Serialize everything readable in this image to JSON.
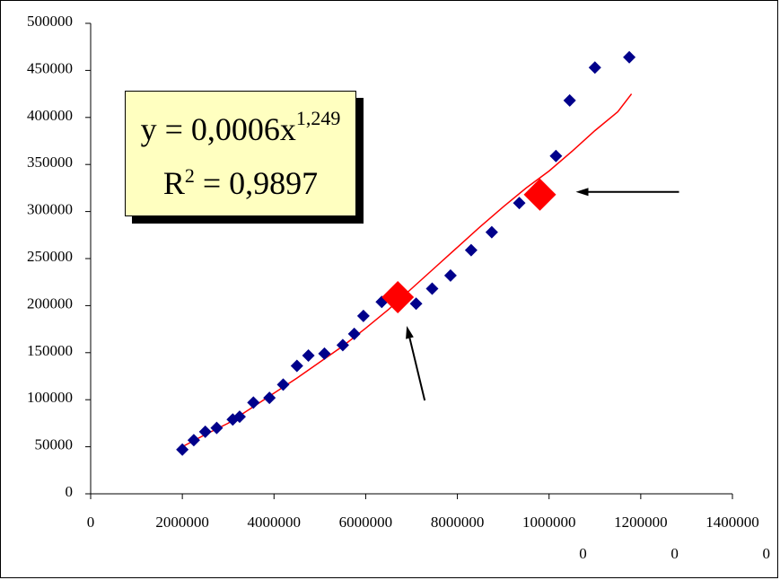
{
  "chart_data": {
    "type": "scatter",
    "title": "",
    "xlabel": "",
    "ylabel": "",
    "xlim": [
      0,
      14000000
    ],
    "ylim": [
      0,
      500000
    ],
    "x_ticks": [
      0,
      2000000,
      4000000,
      6000000,
      8000000,
      10000000,
      12000000,
      14000000
    ],
    "x_tick_labels": [
      [
        "0"
      ],
      [
        "2000000"
      ],
      [
        "4000000"
      ],
      [
        "6000000"
      ],
      [
        "8000000"
      ],
      [
        "1000000",
        "0"
      ],
      [
        "1200000",
        "0"
      ],
      [
        "1400000",
        "0"
      ]
    ],
    "y_ticks": [
      0,
      50000,
      100000,
      150000,
      200000,
      250000,
      300000,
      350000,
      400000,
      450000,
      500000
    ],
    "y_tick_labels": [
      "0",
      "50000",
      "100000",
      "150000",
      "200000",
      "250000",
      "300000",
      "350000",
      "400000",
      "450000",
      "500000"
    ],
    "grid": false,
    "legend": "none",
    "series": [
      {
        "marker": "diamond",
        "color": "#00008b",
        "points": [
          [
            2000000,
            47000
          ],
          [
            2250000,
            57000
          ],
          [
            2500000,
            66000
          ],
          [
            2750000,
            70000
          ],
          [
            3100000,
            79000
          ],
          [
            3250000,
            82000
          ],
          [
            3550000,
            97000
          ],
          [
            3900000,
            102000
          ],
          [
            4200000,
            116000
          ],
          [
            4500000,
            136000
          ],
          [
            4750000,
            147000
          ],
          [
            5100000,
            149000
          ],
          [
            5500000,
            158000
          ],
          [
            5750000,
            170000
          ],
          [
            5950000,
            189000
          ],
          [
            6350000,
            204000
          ],
          [
            7100000,
            202000
          ],
          [
            7450000,
            218000
          ],
          [
            7850000,
            232000
          ],
          [
            8300000,
            259000
          ],
          [
            8750000,
            278000
          ],
          [
            9350000,
            309000
          ],
          [
            10150000,
            359000
          ],
          [
            10450000,
            418000
          ],
          [
            11000000,
            453000
          ],
          [
            11750000,
            464000
          ]
        ]
      }
    ],
    "trendline": {
      "type": "power",
      "color": "#ff0000",
      "points": [
        [
          2000000,
          50000
        ],
        [
          2500000,
          63000
        ],
        [
          3000000,
          75000
        ],
        [
          3500000,
          91000
        ],
        [
          4000000,
          107000
        ],
        [
          4500000,
          123000
        ],
        [
          5000000,
          140000
        ],
        [
          5500000,
          157000
        ],
        [
          6000000,
          176000
        ],
        [
          6500000,
          196000
        ],
        [
          7000000,
          218000
        ],
        [
          7500000,
          240000
        ],
        [
          8000000,
          262000
        ],
        [
          8500000,
          284000
        ],
        [
          9000000,
          305000
        ],
        [
          9500000,
          325000
        ],
        [
          10000000,
          343000
        ],
        [
          10500000,
          364000
        ],
        [
          11000000,
          386000
        ],
        [
          11500000,
          406000
        ],
        [
          11800000,
          425000
        ]
      ]
    },
    "highlights": [
      {
        "x": 6700000,
        "y": 209000,
        "color": "#ff0000"
      },
      {
        "x": 9800000,
        "y": 318000,
        "color": "#ff0000"
      }
    ],
    "annotations": {
      "equation": {
        "prefix": "y = 0,0006x",
        "exponent": "1,249"
      },
      "r_squared": {
        "prefix": "R",
        "exponent": "2",
        "suffix": " = 0,9897"
      }
    }
  }
}
